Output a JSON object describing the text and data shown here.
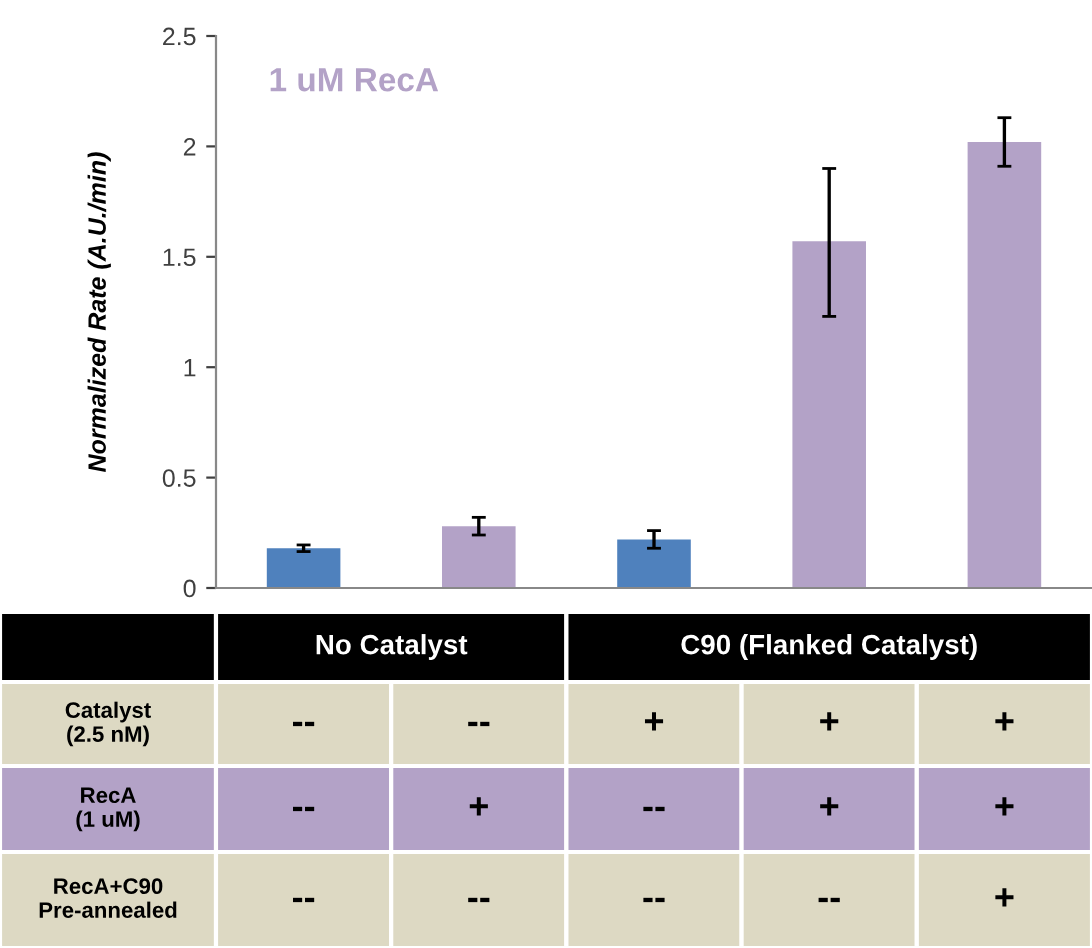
{
  "chart_data": {
    "type": "bar",
    "ylabel": "Normalized Rate (A.U./min)",
    "categories": [
      null,
      null,
      null,
      null,
      null
    ],
    "values": [
      0.18,
      0.28,
      0.22,
      1.57,
      2.02
    ],
    "errors": [
      0.015,
      0.04,
      0.04,
      [
        1.23,
        1.9
      ],
      [
        1.91,
        2.13
      ]
    ],
    "colors": [
      "#4f81bd",
      "#b3a2c7",
      "#4f81bd",
      "#b3a2c7",
      "#b3a2c7"
    ],
    "ylim": [
      0,
      2.5
    ],
    "yticks": [
      0,
      0.5,
      1,
      1.5,
      2,
      2.5
    ],
    "grid": false,
    "annotations": [
      "1 uM RecA",
      "No Catalyst",
      "C90 (Flanked Catalyst)",
      "Catalyst\n(2.5 nM)",
      "--",
      "--",
      "+",
      "+",
      "+",
      "RecA\n(1 uM)",
      "--",
      "+",
      "--",
      "+",
      "+",
      "RecA+C90\nPre-annealed",
      "--",
      "--",
      "--",
      "--",
      "+"
    ]
  }
}
